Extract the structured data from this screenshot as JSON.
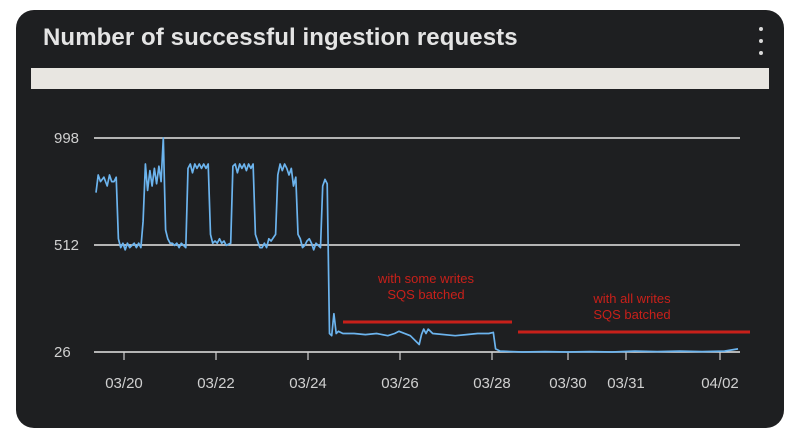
{
  "card": {
    "title": "Number of successful ingestion requests",
    "menu_icon": "kebab-menu-icon"
  },
  "colors": {
    "card_bg": "#1e1f21",
    "line": "#6cb4ee",
    "annotation": "#c8201a",
    "band": "#e8e6e1"
  },
  "chart_data": {
    "type": "line",
    "title": "",
    "xlabel": "",
    "ylabel": "",
    "y_ticks": [
      26,
      512,
      998
    ],
    "ylim": [
      26,
      998
    ],
    "x_ticks": [
      "03/20",
      "03/22",
      "03/24",
      "03/26",
      "03/28",
      "03/30",
      "03/31",
      "04/02"
    ],
    "grid": true,
    "series": [
      {
        "values": [
          [
            0,
            750
          ],
          [
            0.1,
            830
          ],
          [
            0.2,
            800
          ],
          [
            0.35,
            820
          ],
          [
            0.5,
            780
          ],
          [
            0.6,
            830
          ],
          [
            0.7,
            800
          ],
          [
            0.8,
            800
          ],
          [
            0.9,
            820
          ],
          [
            1.0,
            540
          ],
          [
            1.1,
            500
          ],
          [
            1.2,
            520
          ],
          [
            1.3,
            490
          ],
          [
            1.4,
            520
          ],
          [
            1.5,
            500
          ],
          [
            1.6,
            510
          ],
          [
            1.7,
            520
          ],
          [
            1.8,
            500
          ],
          [
            1.9,
            520
          ],
          [
            2.0,
            500
          ],
          [
            2.1,
            620
          ],
          [
            2.2,
            880
          ],
          [
            2.3,
            760
          ],
          [
            2.4,
            850
          ],
          [
            2.5,
            780
          ],
          [
            2.6,
            860
          ],
          [
            2.7,
            790
          ],
          [
            2.8,
            870
          ],
          [
            2.9,
            800
          ],
          [
            3.0,
            998
          ],
          [
            3.1,
            580
          ],
          [
            3.2,
            540
          ],
          [
            3.3,
            520
          ],
          [
            3.4,
            520
          ],
          [
            3.5,
            510
          ],
          [
            3.6,
            520
          ],
          [
            3.7,
            500
          ],
          [
            3.8,
            520
          ],
          [
            4.0,
            500
          ],
          [
            4.1,
            860
          ],
          [
            4.2,
            880
          ],
          [
            4.3,
            840
          ],
          [
            4.4,
            880
          ],
          [
            4.5,
            860
          ],
          [
            4.6,
            880
          ],
          [
            4.7,
            860
          ],
          [
            4.8,
            880
          ],
          [
            4.9,
            860
          ],
          [
            5.0,
            880
          ],
          [
            5.1,
            560
          ],
          [
            5.2,
            520
          ],
          [
            5.3,
            530
          ],
          [
            5.4,
            520
          ],
          [
            5.5,
            540
          ],
          [
            5.6,
            520
          ],
          [
            5.7,
            530
          ],
          [
            5.8,
            510
          ],
          [
            6.0,
            520
          ],
          [
            6.1,
            870
          ],
          [
            6.2,
            880
          ],
          [
            6.3,
            840
          ],
          [
            6.4,
            880
          ],
          [
            6.5,
            860
          ],
          [
            6.6,
            880
          ],
          [
            6.7,
            850
          ],
          [
            6.8,
            880
          ],
          [
            6.9,
            860
          ],
          [
            7.0,
            880
          ],
          [
            7.1,
            560
          ],
          [
            7.2,
            530
          ],
          [
            7.3,
            500
          ],
          [
            7.4,
            500
          ],
          [
            7.5,
            520
          ],
          [
            7.6,
            500
          ],
          [
            7.7,
            540
          ],
          [
            7.8,
            530
          ],
          [
            8.0,
            560
          ],
          [
            8.1,
            830
          ],
          [
            8.2,
            880
          ],
          [
            8.3,
            850
          ],
          [
            8.4,
            880
          ],
          [
            8.5,
            860
          ],
          [
            8.6,
            830
          ],
          [
            8.7,
            860
          ],
          [
            8.8,
            780
          ],
          [
            8.9,
            820
          ],
          [
            9.0,
            560
          ],
          [
            9.1,
            540
          ],
          [
            9.2,
            500
          ],
          [
            9.3,
            510
          ],
          [
            9.4,
            530
          ],
          [
            9.5,
            540
          ],
          [
            9.6,
            520
          ],
          [
            9.7,
            490
          ],
          [
            9.8,
            520
          ],
          [
            10.0,
            500
          ],
          [
            10.1,
            780
          ],
          [
            10.2,
            810
          ],
          [
            10.3,
            790
          ],
          [
            10.4,
            110
          ],
          [
            10.5,
            100
          ],
          [
            10.6,
            200
          ],
          [
            10.7,
            110
          ],
          [
            10.8,
            120
          ],
          [
            11.0,
            110
          ],
          [
            11.5,
            110
          ],
          [
            12.0,
            105
          ],
          [
            12.5,
            110
          ],
          [
            13.0,
            100
          ],
          [
            13.3,
            110
          ],
          [
            13.5,
            120
          ],
          [
            14.0,
            100
          ],
          [
            14.4,
            60
          ],
          [
            14.5,
            105
          ],
          [
            14.6,
            130
          ],
          [
            14.7,
            110
          ],
          [
            14.8,
            130
          ],
          [
            15.0,
            110
          ],
          [
            16.0,
            100
          ],
          [
            16.5,
            105
          ],
          [
            17.0,
            110
          ],
          [
            17.5,
            110
          ],
          [
            17.7,
            115
          ],
          [
            17.8,
            40
          ],
          [
            18.0,
            30
          ],
          [
            19.0,
            26
          ],
          [
            20.0,
            28
          ],
          [
            21.0,
            26
          ],
          [
            22.0,
            28
          ],
          [
            23.0,
            26
          ],
          [
            24.0,
            30
          ],
          [
            25.0,
            28
          ],
          [
            26.0,
            30
          ],
          [
            27.0,
            28
          ],
          [
            28.0,
            30
          ],
          [
            28.6,
            40
          ]
        ]
      }
    ],
    "annotations": [
      {
        "text": [
          "with some writes",
          "SQS batched"
        ]
      },
      {
        "text": [
          "with all writes",
          "SQS batched"
        ]
      }
    ]
  }
}
